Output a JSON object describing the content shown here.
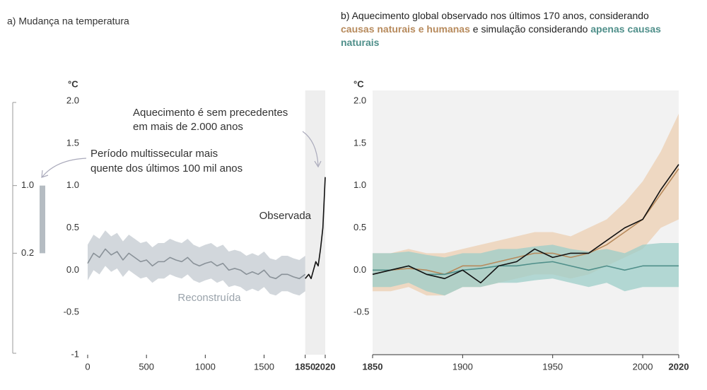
{
  "chart_data": [
    {
      "type": "line",
      "title": "a) Mudança na temperatura",
      "y_label": "°C",
      "xlim": [
        0,
        2020
      ],
      "xticks": [
        0,
        500,
        1000,
        1500,
        1850,
        2020
      ],
      "ylim": [
        -1,
        2
      ],
      "yticks": [
        -1,
        -0.5,
        {
          "value": 0,
          "label": "0.0"
        },
        0.5,
        {
          "value": 1,
          "label": "1.0"
        },
        1.5,
        {
          "value": 2,
          "label": "2.0"
        }
      ],
      "shaded_xrange": [
        1850,
        2020
      ],
      "x": [
        0,
        50,
        100,
        150,
        200,
        250,
        300,
        350,
        400,
        450,
        500,
        550,
        600,
        650,
        700,
        750,
        800,
        850,
        900,
        950,
        1000,
        1050,
        1100,
        1150,
        1200,
        1250,
        1300,
        1350,
        1400,
        1450,
        1500,
        1550,
        1600,
        1650,
        1700,
        1750,
        1800,
        1850
      ],
      "series": [
        {
          "name": "Reconstruída",
          "color": "#8a9299",
          "band_color": "#c3cad0",
          "values": [
            0.08,
            0.2,
            0.15,
            0.25,
            0.18,
            0.22,
            0.12,
            0.2,
            0.15,
            0.1,
            0.12,
            0.05,
            0.1,
            0.1,
            0.15,
            0.12,
            0.1,
            0.15,
            0.08,
            0.05,
            0.08,
            0.1,
            0.05,
            0.08,
            0.0,
            0.02,
            0.0,
            -0.05,
            -0.02,
            -0.05,
            0.0,
            -0.08,
            -0.1,
            -0.05,
            -0.05,
            -0.08,
            -0.1,
            -0.05
          ],
          "lower": [
            -0.12,
            0.0,
            -0.05,
            0.05,
            -0.02,
            0.02,
            -0.08,
            0.0,
            -0.05,
            -0.1,
            -0.08,
            -0.15,
            -0.1,
            -0.1,
            -0.05,
            -0.08,
            -0.1,
            -0.05,
            -0.12,
            -0.15,
            -0.12,
            -0.1,
            -0.15,
            -0.12,
            -0.2,
            -0.18,
            -0.2,
            -0.25,
            -0.22,
            -0.25,
            -0.2,
            -0.28,
            -0.3,
            -0.25,
            -0.25,
            -0.28,
            -0.3,
            -0.25
          ],
          "upper": [
            0.3,
            0.42,
            0.37,
            0.47,
            0.4,
            0.44,
            0.34,
            0.42,
            0.37,
            0.32,
            0.34,
            0.27,
            0.32,
            0.32,
            0.37,
            0.34,
            0.32,
            0.37,
            0.3,
            0.27,
            0.3,
            0.32,
            0.27,
            0.3,
            0.22,
            0.24,
            0.22,
            0.17,
            0.2,
            0.17,
            0.22,
            0.14,
            0.12,
            0.17,
            0.17,
            0.14,
            0.12,
            0.17
          ]
        },
        {
          "name": "Observada",
          "color": "#111111",
          "x": [
            1850,
            1880,
            1900,
            1920,
            1940,
            1960,
            1980,
            2000,
            2010,
            2020
          ],
          "values": [
            -0.1,
            -0.05,
            -0.1,
            0.0,
            0.1,
            0.05,
            0.25,
            0.5,
            0.8,
            1.1
          ]
        }
      ],
      "bar": {
        "values": [
          0.2,
          1
        ],
        "value_labels": [
          "0.2",
          "1.0"
        ],
        "color": "#b5bcc2"
      },
      "annotations": [
        {
          "lines": [
            "Aquecimento é sem precedentes",
            "em mais de 2.000 anos"
          ]
        },
        {
          "lines": [
            "Período multissecular mais",
            "quente dos últimos 100 mil anos"
          ]
        }
      ]
    },
    {
      "type": "line",
      "title_parts": [
        "b) Aquecimento global observado nos últimos 170 anos, considerando",
        "e simulação considerando"
      ],
      "y_label": "°C",
      "xlim": [
        1850,
        2020
      ],
      "xticks": [
        1850,
        1900,
        1950,
        2000,
        2020
      ],
      "ylim": [
        -1,
        2
      ],
      "yticks": [
        -0.5,
        {
          "value": 0,
          "label": "0.0"
        },
        0.5,
        {
          "value": 1,
          "label": "1.0"
        },
        1.5,
        {
          "value": 2,
          "label": "2.0"
        }
      ],
      "x": [
        1850,
        1860,
        1870,
        1880,
        1890,
        1900,
        1910,
        1920,
        1930,
        1940,
        1950,
        1960,
        1970,
        1980,
        1990,
        2000,
        2010,
        2020
      ],
      "series": [
        {
          "name": "causas naturais e humanas",
          "color": "#b78a5c",
          "band_color": "#eccfb2",
          "values": [
            0.0,
            0.0,
            0.02,
            0.0,
            -0.05,
            0.05,
            0.05,
            0.1,
            0.15,
            0.2,
            0.2,
            0.15,
            0.2,
            0.3,
            0.45,
            0.6,
            0.9,
            1.2
          ],
          "lower": [
            -0.25,
            -0.25,
            -0.2,
            -0.3,
            -0.3,
            -0.2,
            -0.2,
            -0.15,
            -0.1,
            -0.05,
            -0.05,
            -0.1,
            -0.05,
            0.05,
            0.15,
            0.25,
            0.5,
            0.6
          ],
          "upper": [
            0.2,
            0.2,
            0.25,
            0.2,
            0.2,
            0.25,
            0.3,
            0.35,
            0.4,
            0.45,
            0.45,
            0.4,
            0.5,
            0.6,
            0.8,
            1.05,
            1.4,
            1.85
          ]
        },
        {
          "name": "apenas causas naturais",
          "color": "#4f8f8a",
          "band_color": "#9ccdc8",
          "values": [
            0.0,
            0.0,
            0.05,
            -0.05,
            -0.05,
            0.0,
            0.02,
            0.05,
            0.05,
            0.08,
            0.1,
            0.05,
            0.0,
            0.05,
            0.0,
            0.05,
            0.05,
            0.05
          ],
          "lower": [
            -0.2,
            -0.2,
            -0.15,
            -0.25,
            -0.3,
            -0.2,
            -0.2,
            -0.15,
            -0.15,
            -0.12,
            -0.1,
            -0.15,
            -0.2,
            -0.15,
            -0.25,
            -0.2,
            -0.2,
            -0.2
          ],
          "upper": [
            0.2,
            0.2,
            0.22,
            0.18,
            0.15,
            0.2,
            0.2,
            0.25,
            0.25,
            0.28,
            0.3,
            0.25,
            0.22,
            0.25,
            0.2,
            0.3,
            0.32,
            0.32
          ]
        },
        {
          "color": "#111111",
          "values": [
            -0.05,
            0.0,
            0.05,
            -0.05,
            -0.1,
            0.0,
            -0.15,
            0.05,
            0.1,
            0.25,
            0.15,
            0.2,
            0.2,
            0.35,
            0.5,
            0.6,
            0.95,
            1.25
          ]
        }
      ]
    }
  ]
}
